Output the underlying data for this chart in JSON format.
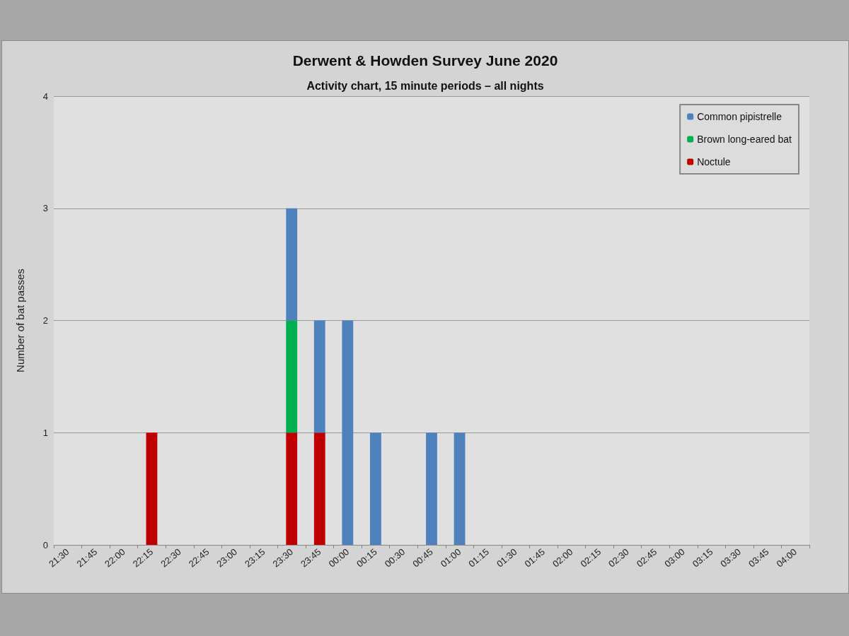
{
  "chart_data": {
    "type": "bar",
    "title": "Derwent & Howden Survey June 2020",
    "subtitle": "Activity chart, 15 minute periods – all nights",
    "ylabel": "Number of bat passes",
    "categories": [
      "21:30",
      "21:45",
      "22:00",
      "22:15",
      "22:30",
      "22:45",
      "23:00",
      "23:15",
      "23:30",
      "23:45",
      "00:00",
      "00:15",
      "00:30",
      "00:45",
      "01:00",
      "01:15",
      "01:30",
      "01:45",
      "02:00",
      "02:15",
      "02:30",
      "02:45",
      "03:00",
      "03:15",
      "03:30",
      "03:45",
      "04:00"
    ],
    "series": [
      {
        "name": "Noctule",
        "color": "#c00000",
        "values": [
          0,
          0,
          0,
          1,
          0,
          0,
          0,
          0,
          1,
          1,
          0,
          0,
          0,
          0,
          0,
          0,
          0,
          0,
          0,
          0,
          0,
          0,
          0,
          0,
          0,
          0,
          0
        ]
      },
      {
        "name": "Brown long-eared bat",
        "color": "#00b050",
        "values": [
          0,
          0,
          0,
          0,
          0,
          0,
          0,
          0,
          1,
          0,
          0,
          0,
          0,
          0,
          0,
          0,
          0,
          0,
          0,
          0,
          0,
          0,
          0,
          0,
          0,
          0,
          0
        ]
      },
      {
        "name": "Common pipistrelle",
        "color": "#4f81bd",
        "values": [
          0,
          0,
          0,
          0,
          0,
          0,
          0,
          0,
          1,
          1,
          2,
          1,
          0,
          1,
          1,
          0,
          0,
          0,
          0,
          0,
          0,
          0,
          0,
          0,
          0,
          0,
          0
        ]
      }
    ],
    "stacked": true,
    "ylim": [
      0,
      4
    ],
    "yticks": [
      0,
      1,
      2,
      3,
      4
    ],
    "grid": "y",
    "legend": "top right"
  }
}
